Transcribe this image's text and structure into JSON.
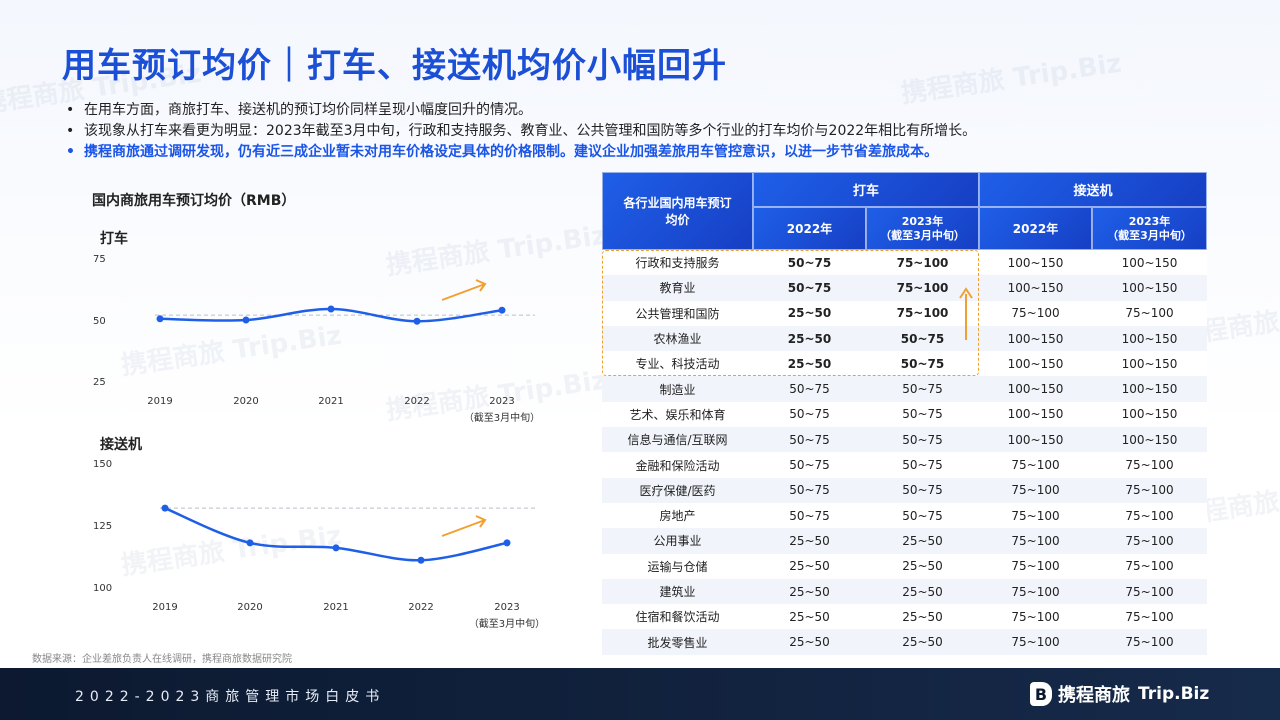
{
  "title": "用车预订均价｜打车、接送机均价小幅回升",
  "bullets": [
    "在用车方面，商旅打车、接送机的预订均价同样呈现小幅度回升的情况。",
    "该现象从打车来看更为明显：2023年截至3月中旬，行政和支持服务、教育业、公共管理和国防等多个行业的打车均价与2022年相比有所增长。",
    "携程商旅通过调研发现，仍有近三成企业暂未对用车价格设定具体的价格限制。建议企业加强差旅用车管控意识，以进一步节省差旅成本。"
  ],
  "colors": {
    "accent": "#1a4fd6",
    "line": "#1f5fe8",
    "arrow": "#f0a030",
    "footer": "#0c1930"
  },
  "chart_data": [
    {
      "type": "line",
      "title": "国内商旅用车预订均价（RMB）",
      "subtitle": "打车",
      "x": [
        "2019",
        "2020",
        "2021",
        "2022",
        "2023"
      ],
      "x_note": "（截至3月中旬）",
      "values": [
        51.5,
        51,
        55.5,
        50.5,
        55
      ],
      "ylim": [
        25,
        75
      ],
      "yticks": [
        "25",
        "50",
        "75"
      ],
      "reference_line": 53
    },
    {
      "type": "line",
      "subtitle": "接送机",
      "x": [
        "2019",
        "2020",
        "2021",
        "2022",
        "2023"
      ],
      "x_note": "（截至3月中旬）",
      "values": [
        133,
        119,
        117,
        112,
        119
      ],
      "ylim": [
        100,
        150
      ],
      "yticks": [
        "100",
        "125",
        "150"
      ],
      "reference_line": 133
    },
    {
      "type": "table",
      "header": {
        "industry": "各行业国内用车预订均价",
        "taxi": "打车",
        "airport": "接送机",
        "y2022": "2022年",
        "y2023": "2023年",
        "y2023_note": "（截至3月中旬）"
      },
      "rows": [
        [
          "行政和支持服务",
          "50~75",
          "75~100",
          "100~150",
          "100~150"
        ],
        [
          "教育业",
          "50~75",
          "75~100",
          "100~150",
          "100~150"
        ],
        [
          "公共管理和国防",
          "25~50",
          "75~100",
          "75~100",
          "75~100"
        ],
        [
          "农林渔业",
          "25~50",
          "50~75",
          "100~150",
          "100~150"
        ],
        [
          "专业、科技活动",
          "25~50",
          "50~75",
          "100~150",
          "100~150"
        ],
        [
          "制造业",
          "50~75",
          "50~75",
          "100~150",
          "100~150"
        ],
        [
          "艺术、娱乐和体育",
          "50~75",
          "50~75",
          "100~150",
          "100~150"
        ],
        [
          "信息与通信/互联网",
          "50~75",
          "50~75",
          "100~150",
          "100~150"
        ],
        [
          "金融和保险活动",
          "50~75",
          "50~75",
          "75~100",
          "75~100"
        ],
        [
          "医疗保健/医药",
          "50~75",
          "50~75",
          "75~100",
          "75~100"
        ],
        [
          "房地产",
          "50~75",
          "50~75",
          "75~100",
          "75~100"
        ],
        [
          "公用事业",
          "25~50",
          "25~50",
          "75~100",
          "75~100"
        ],
        [
          "运输与仓储",
          "25~50",
          "25~50",
          "75~100",
          "75~100"
        ],
        [
          "建筑业",
          "25~50",
          "25~50",
          "75~100",
          "75~100"
        ],
        [
          "住宿和餐饮活动",
          "25~50",
          "25~50",
          "75~100",
          "75~100"
        ],
        [
          "批发零售业",
          "25~50",
          "25~50",
          "75~100",
          "75~100"
        ]
      ],
      "highlighted_rows": 5
    }
  ],
  "source": "数据来源：企业差旅负责人在线调研，携程商旅数据研究院",
  "watermark": "携程商旅 Trip.Biz",
  "footer": {
    "text": "2022-2023商旅管理市场白皮书",
    "logo_cn": "携程商旅",
    "logo_en": "Trip.Biz",
    "logo_mark": "B"
  }
}
